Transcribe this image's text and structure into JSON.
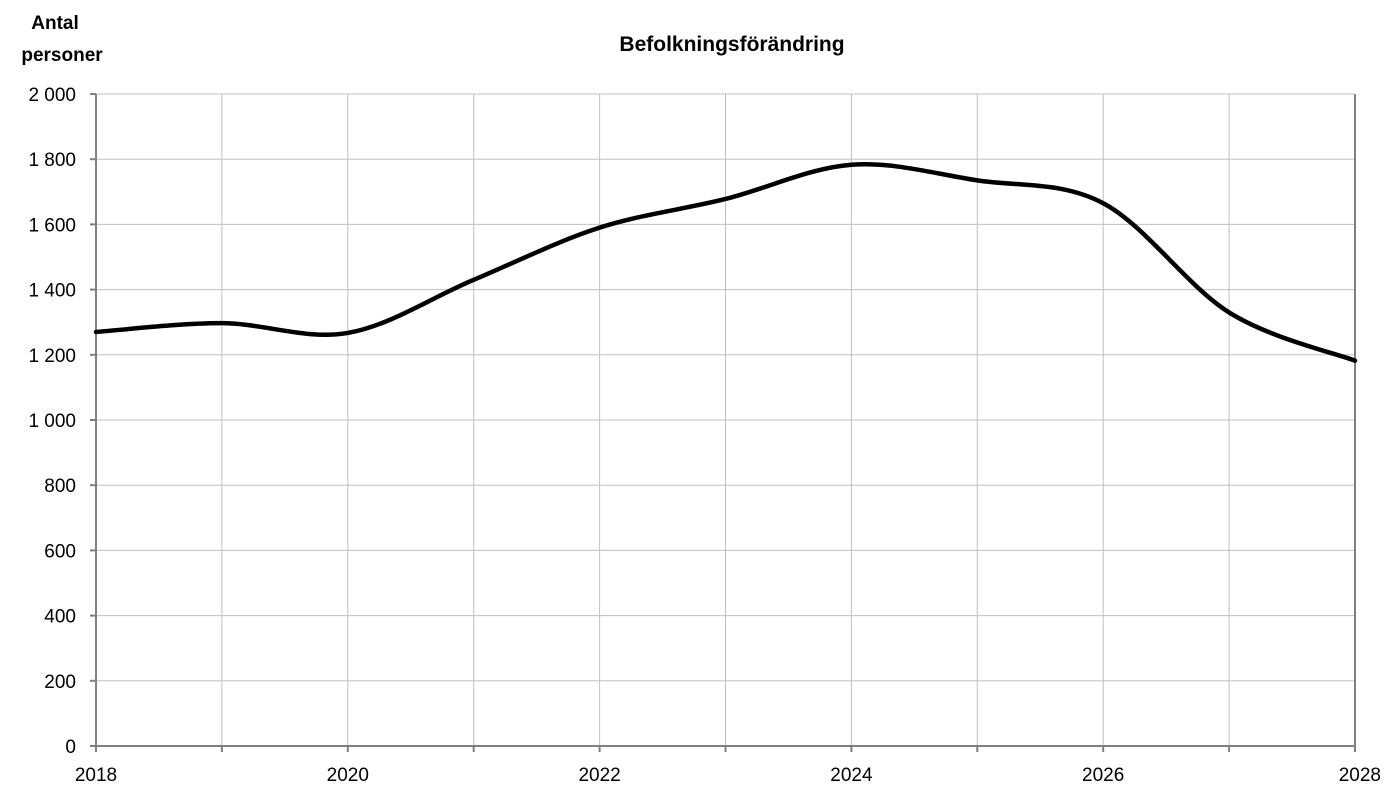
{
  "chart_data": {
    "type": "line",
    "title": "Befolkningsförändring",
    "ylabel_line1": "Antal",
    "ylabel_line2": "personer",
    "xlabel": "",
    "xlim": [
      2018,
      2028
    ],
    "ylim": [
      0,
      2000
    ],
    "x_ticks": [
      "2018",
      "2020",
      "2022",
      "2024",
      "2026",
      "2028"
    ],
    "y_ticks": [
      "0",
      "200",
      "400",
      "600",
      "800",
      "1 000",
      "1 200",
      "1 400",
      "1 600",
      "1 800",
      "2 000"
    ],
    "grid": true,
    "legend": "none",
    "line_color": "#000000",
    "grid_color": "#c0c0c0",
    "axis_color": "#808080",
    "series": [
      {
        "x": [
          2018,
          2019,
          2020,
          2021,
          2022,
          2023,
          2024,
          2025,
          2026,
          2027,
          2028
        ],
        "values": [
          1270,
          1297,
          1267,
          1430,
          1590,
          1678,
          1783,
          1735,
          1665,
          1330,
          1182
        ]
      }
    ]
  }
}
